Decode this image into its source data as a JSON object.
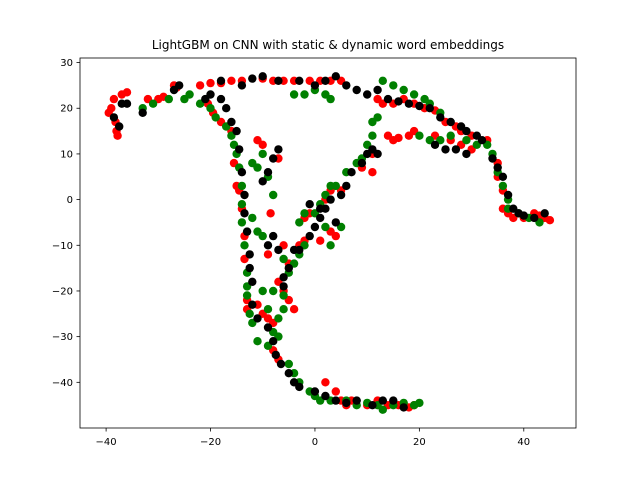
{
  "chart_data": {
    "type": "scatter",
    "title": "LightGBM on CNN with static & dynamic word embeddings",
    "xlabel": "",
    "ylabel": "",
    "xlim": [
      -45,
      50
    ],
    "ylim": [
      -50,
      31
    ],
    "xticks": [
      -40,
      -20,
      0,
      20,
      40
    ],
    "yticks": [
      30,
      20,
      10,
      0,
      -10,
      -20,
      -30,
      -40
    ],
    "xtick_labels": [
      "−40",
      "−20",
      "0",
      "20",
      "40"
    ],
    "ytick_labels": [
      "30",
      "20",
      "10",
      "0",
      "−10",
      "−20",
      "−30",
      "−40"
    ],
    "grid": false,
    "legend": "none",
    "colors": [
      "#ff0000",
      "#008000",
      "#000000"
    ],
    "series": [
      {
        "color": "#ff0000",
        "points": [
          [
            -39,
            20
          ],
          [
            -38.5,
            22
          ],
          [
            -38,
            15
          ],
          [
            -37.8,
            14
          ],
          [
            -38.2,
            17
          ],
          [
            -37,
            23
          ],
          [
            -36,
            23.5
          ],
          [
            -39.5,
            19
          ],
          [
            -32,
            22
          ],
          [
            -30,
            22
          ],
          [
            -29,
            22.5
          ],
          [
            -27,
            25
          ],
          [
            -26.5,
            24.5
          ],
          [
            -22,
            25
          ],
          [
            -20,
            25.5
          ],
          [
            -18,
            25.5
          ],
          [
            -16,
            26
          ],
          [
            -14,
            26
          ],
          [
            -10,
            26.5
          ],
          [
            -8,
            26
          ],
          [
            -6,
            26
          ],
          [
            -4,
            26
          ],
          [
            -1,
            26
          ],
          [
            1,
            26
          ],
          [
            3,
            26
          ],
          [
            5,
            26
          ],
          [
            -20.5,
            21
          ],
          [
            -19.5,
            19
          ],
          [
            -18,
            17
          ],
          [
            -16,
            15
          ],
          [
            -15.5,
            8
          ],
          [
            -15,
            3
          ],
          [
            -14.5,
            2
          ],
          [
            -14,
            -2
          ],
          [
            -13.5,
            -8
          ],
          [
            -13.5,
            -13
          ],
          [
            -13,
            -22
          ],
          [
            -13,
            -24
          ],
          [
            -11,
            -23
          ],
          [
            -10,
            -25
          ],
          [
            -9,
            -26
          ],
          [
            -8,
            -27
          ],
          [
            -8,
            -33
          ],
          [
            -7,
            -35
          ],
          [
            -6,
            -20
          ],
          [
            -11,
            13
          ],
          [
            -10,
            12
          ],
          [
            -7,
            9
          ],
          [
            -8.5,
            -3
          ],
          [
            -9,
            -12
          ],
          [
            -7,
            -18
          ],
          [
            -5,
            -22
          ],
          [
            -4,
            -24
          ],
          [
            -5,
            -14
          ],
          [
            -3,
            -10
          ],
          [
            -2,
            -9
          ],
          [
            -6,
            -10
          ],
          [
            -2,
            -4
          ],
          [
            -1,
            -3
          ],
          [
            2,
            0
          ],
          [
            3,
            2
          ],
          [
            5,
            2
          ],
          [
            3,
            -7
          ],
          [
            4,
            -8
          ],
          [
            1,
            -9
          ],
          [
            9,
            7
          ],
          [
            11,
            6
          ],
          [
            11,
            10
          ],
          [
            12,
            22
          ],
          [
            13,
            21
          ],
          [
            15,
            21
          ],
          [
            17,
            22
          ],
          [
            19,
            21
          ],
          [
            21,
            20
          ],
          [
            23,
            19.5
          ],
          [
            14,
            14
          ],
          [
            15,
            13
          ],
          [
            16,
            13.5
          ],
          [
            18,
            14
          ],
          [
            19,
            15
          ],
          [
            23,
            14
          ],
          [
            26,
            13
          ],
          [
            28,
            12
          ],
          [
            30,
            11
          ],
          [
            25,
            17
          ],
          [
            27,
            16
          ],
          [
            28,
            15
          ],
          [
            30,
            14
          ],
          [
            33,
            13
          ],
          [
            35,
            8
          ],
          [
            35,
            5
          ],
          [
            36,
            2
          ],
          [
            36,
            -2
          ],
          [
            37,
            -3
          ],
          [
            38,
            -4
          ],
          [
            40,
            -4
          ],
          [
            42,
            -3
          ],
          [
            43,
            -3.5
          ],
          [
            44,
            -4
          ],
          [
            45,
            -4.5
          ],
          [
            2,
            -40
          ],
          [
            4,
            -42
          ],
          [
            5,
            -44
          ],
          [
            6,
            -45
          ],
          [
            7,
            -44
          ],
          [
            10,
            -45
          ],
          [
            12,
            -44
          ],
          [
            14,
            -45
          ],
          [
            16,
            -45
          ],
          [
            18,
            -45.5
          ],
          [
            19,
            -45
          ]
        ]
      },
      {
        "color": "#008000",
        "points": [
          [
            -33,
            20
          ],
          [
            -31,
            21
          ],
          [
            -28,
            22
          ],
          [
            -25,
            22
          ],
          [
            -24,
            23
          ],
          [
            -22,
            21
          ],
          [
            -20,
            20
          ],
          [
            -19,
            18
          ],
          [
            -17,
            16
          ],
          [
            -16,
            14
          ],
          [
            -15.5,
            12
          ],
          [
            -15,
            10
          ],
          [
            -14.5,
            7
          ],
          [
            -14,
            3
          ],
          [
            -14,
            -1
          ],
          [
            -14,
            -5
          ],
          [
            -13.5,
            -10
          ],
          [
            -13,
            -16
          ],
          [
            -13,
            -19
          ],
          [
            -13,
            -21
          ],
          [
            -12.5,
            -25
          ],
          [
            -12,
            -27
          ],
          [
            -11,
            -31
          ],
          [
            -9,
            -32
          ],
          [
            -8,
            -29
          ],
          [
            -7,
            -30
          ],
          [
            -6,
            -21
          ],
          [
            -6,
            -24
          ],
          [
            -7,
            -26
          ],
          [
            -12,
            -4
          ],
          [
            -11,
            -7
          ],
          [
            -10,
            -8
          ],
          [
            -10,
            -20
          ],
          [
            -8,
            -20
          ],
          [
            -9,
            -24
          ],
          [
            -12,
            8
          ],
          [
            -11,
            7
          ],
          [
            -10,
            10
          ],
          [
            -9,
            5
          ],
          [
            -8,
            1
          ],
          [
            -6,
            -13
          ],
          [
            -5,
            -16
          ],
          [
            -4,
            -14
          ],
          [
            -3,
            -12
          ],
          [
            -2,
            -10
          ],
          [
            -3,
            -5
          ],
          [
            -2,
            -3
          ],
          [
            0,
            -3
          ],
          [
            1,
            -1
          ],
          [
            2,
            1
          ],
          [
            3,
            3
          ],
          [
            4,
            3
          ],
          [
            2,
            -6
          ],
          [
            3,
            -10
          ],
          [
            5,
            -6
          ],
          [
            6,
            6
          ],
          [
            8,
            8
          ],
          [
            9,
            9
          ],
          [
            10,
            12
          ],
          [
            11,
            14
          ],
          [
            12,
            18
          ],
          [
            11,
            17
          ],
          [
            13,
            26
          ],
          [
            15,
            25
          ],
          [
            17,
            24
          ],
          [
            19,
            23
          ],
          [
            21,
            22
          ],
          [
            22,
            21
          ],
          [
            24,
            19
          ],
          [
            20,
            14
          ],
          [
            22,
            13
          ],
          [
            24,
            13
          ],
          [
            26,
            14
          ],
          [
            29,
            13
          ],
          [
            31,
            12
          ],
          [
            33,
            12
          ],
          [
            34,
            10
          ],
          [
            35,
            6
          ],
          [
            36,
            3
          ],
          [
            37,
            0
          ],
          [
            37,
            -2
          ],
          [
            39,
            -3
          ],
          [
            41,
            -4
          ],
          [
            43,
            -5
          ],
          [
            -5,
            -36
          ],
          [
            -4,
            -38
          ],
          [
            -3,
            -40
          ],
          [
            -1,
            -42
          ],
          [
            0,
            -43
          ],
          [
            1,
            -44
          ],
          [
            3,
            -44
          ],
          [
            6,
            -44
          ],
          [
            8,
            -45
          ],
          [
            10,
            -44.5
          ],
          [
            12,
            -45
          ],
          [
            13,
            -46
          ],
          [
            15,
            -45
          ],
          [
            17,
            -44.5
          ],
          [
            19,
            -45
          ],
          [
            20,
            -44.5
          ],
          [
            -4,
            23
          ],
          [
            -2,
            23
          ],
          [
            0,
            24
          ],
          [
            2,
            23
          ],
          [
            3,
            22
          ]
        ]
      },
      {
        "color": "#000000",
        "points": [
          [
            -37,
            21
          ],
          [
            -38.5,
            18
          ],
          [
            -37.5,
            16
          ],
          [
            -36,
            21
          ],
          [
            -33,
            19
          ],
          [
            -27,
            24
          ],
          [
            -26,
            25
          ],
          [
            -21,
            22
          ],
          [
            -20,
            23
          ],
          [
            -18,
            22
          ],
          [
            -17,
            20
          ],
          [
            -16,
            17
          ],
          [
            -15,
            15
          ],
          [
            -14.5,
            11
          ],
          [
            -14,
            6
          ],
          [
            -13.5,
            1
          ],
          [
            -13.5,
            -3
          ],
          [
            -13,
            -7
          ],
          [
            -12.5,
            -12
          ],
          [
            -12.5,
            -15
          ],
          [
            -12,
            -18
          ],
          [
            -12,
            -23
          ],
          [
            -11,
            -26
          ],
          [
            -9,
            -28
          ],
          [
            -8,
            -31
          ],
          [
            -7.5,
            -34
          ],
          [
            -6.5,
            -36
          ],
          [
            -5,
            -38
          ],
          [
            -4,
            -40
          ],
          [
            -3,
            -41
          ],
          [
            -10,
            4
          ],
          [
            -9,
            6
          ],
          [
            -8,
            9
          ],
          [
            -7,
            11
          ],
          [
            -9,
            -10
          ],
          [
            -8,
            -8
          ],
          [
            -7,
            -11
          ],
          [
            -6,
            -17
          ],
          [
            -6,
            -19
          ],
          [
            -5,
            -15
          ],
          [
            -4,
            -11
          ],
          [
            -3,
            -11
          ],
          [
            -1,
            -8
          ],
          [
            0,
            -6
          ],
          [
            1,
            -4
          ],
          [
            2,
            -2
          ],
          [
            3,
            0
          ],
          [
            5,
            1
          ],
          [
            6,
            3
          ],
          [
            1,
            -2
          ],
          [
            -1,
            -1
          ],
          [
            4,
            -5
          ],
          [
            7,
            6
          ],
          [
            9,
            8
          ],
          [
            10,
            10
          ],
          [
            11,
            11
          ],
          [
            12,
            10
          ],
          [
            -18,
            26
          ],
          [
            -14,
            25
          ],
          [
            -12,
            26.5
          ],
          [
            -10,
            27
          ],
          [
            -7,
            26
          ],
          [
            -3,
            26
          ],
          [
            0,
            25
          ],
          [
            2,
            26
          ],
          [
            4,
            27
          ],
          [
            6,
            25
          ],
          [
            8,
            24
          ],
          [
            10,
            23
          ],
          [
            12,
            24
          ],
          [
            14,
            22
          ],
          [
            16,
            21.5
          ],
          [
            18,
            21
          ],
          [
            20,
            20.5
          ],
          [
            22,
            20
          ],
          [
            24,
            18
          ],
          [
            26,
            17
          ],
          [
            28,
            16
          ],
          [
            29,
            15
          ],
          [
            31,
            14
          ],
          [
            32,
            13
          ],
          [
            23,
            12
          ],
          [
            25,
            11
          ],
          [
            27,
            11
          ],
          [
            29,
            10
          ],
          [
            34,
            9
          ],
          [
            35,
            7
          ],
          [
            36,
            5
          ],
          [
            37,
            1
          ],
          [
            38,
            -2
          ],
          [
            39,
            -3
          ],
          [
            40,
            -3.5
          ],
          [
            42,
            -4
          ],
          [
            44,
            -3
          ],
          [
            0,
            -42
          ],
          [
            2,
            -43
          ],
          [
            4,
            -44
          ],
          [
            6,
            -44.5
          ],
          [
            8,
            -44
          ],
          [
            11,
            -45
          ],
          [
            13,
            -44
          ],
          [
            15,
            -44
          ],
          [
            17,
            -45.5
          ]
        ]
      }
    ]
  }
}
